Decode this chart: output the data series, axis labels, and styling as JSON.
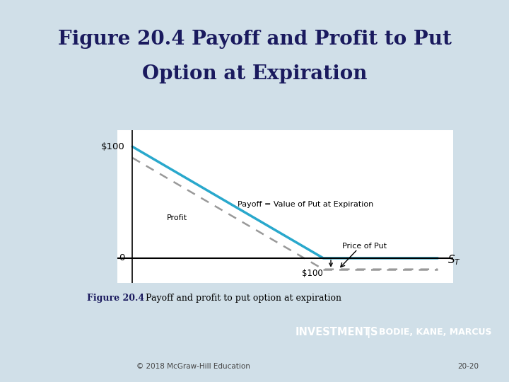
{
  "title_line1": "Figure 20.4 Payoff and Profit to Put",
  "title_line2": "Option at Expiration",
  "title_bg": "#e8d0d8",
  "title_color": "#1a1a5e",
  "title_fontsize": 20,
  "strike": 100,
  "premium": 10,
  "y_label_100": "$100",
  "y_label_0": "0",
  "annotation_payoff": "Payoff = Value of Put at Expiration",
  "annotation_profit": "Profit",
  "annotation_price_of_put": "Price of Put",
  "annotation_100": "$100",
  "payoff_color": "#29a8cc",
  "profit_color": "#999999",
  "plot_bg": "#ffffff",
  "outer_bg": "#cde4ef",
  "footer_bg": "#8b1a2a",
  "footer_text_left": "INVESTMENTS",
  "footer_text_right": "BODIE, KANE, MARCUS",
  "footer_text_color": "#ffffff",
  "caption_bold": "Figure 20.4",
  "caption_normal": "  Payoff and profit to put option at expiration",
  "caption_color": "#1a1a5e",
  "copyright_text": "© 2018 McGraw-Hill Education",
  "page_num": "20-20",
  "outer_border_color": "#7bbdd4",
  "page_bg": "#d0dfe8"
}
